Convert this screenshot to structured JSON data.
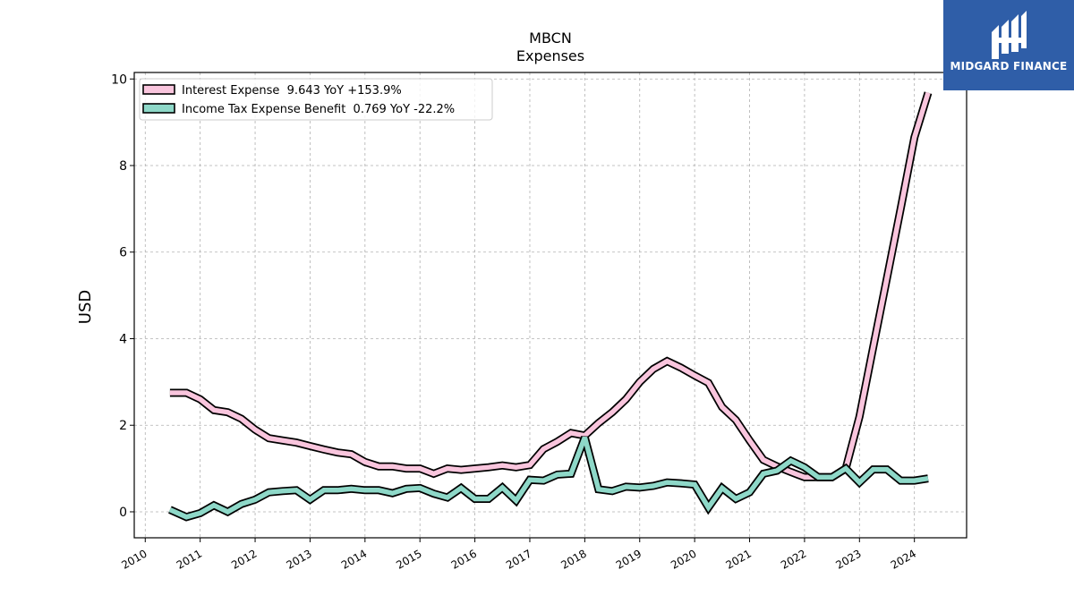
{
  "chart_data": {
    "type": "line",
    "title": "MBCN",
    "subtitle": "Expenses",
    "ylabel": "USD",
    "xlabel": "",
    "ylim": [
      -0.6,
      10.15
    ],
    "xlim": [
      2009.8,
      2024.95
    ],
    "yticks": [
      0,
      2,
      4,
      6,
      8,
      10
    ],
    "xticks": [
      2010,
      2011,
      2012,
      2013,
      2014,
      2015,
      2016,
      2017,
      2018,
      2019,
      2020,
      2021,
      2022,
      2023,
      2024
    ],
    "grid": true,
    "legend_position": "top-left",
    "x": [
      2010.45,
      2010.75,
      2011.0,
      2011.25,
      2011.5,
      2011.75,
      2012.0,
      2012.25,
      2012.5,
      2012.75,
      2013.0,
      2013.25,
      2013.5,
      2013.75,
      2014.0,
      2014.25,
      2014.5,
      2014.75,
      2015.0,
      2015.25,
      2015.5,
      2015.75,
      2016.0,
      2016.25,
      2016.5,
      2016.75,
      2017.0,
      2017.25,
      2017.5,
      2017.75,
      2018.0,
      2018.25,
      2018.5,
      2018.75,
      2019.0,
      2019.25,
      2019.5,
      2019.75,
      2020.0,
      2020.25,
      2020.5,
      2020.75,
      2021.0,
      2021.25,
      2021.5,
      2021.75,
      2022.0,
      2022.25,
      2022.5,
      2022.75,
      2023.0,
      2023.25,
      2023.5,
      2023.75,
      2024.0,
      2024.25
    ],
    "series": [
      {
        "name": "Interest Expense  9.643 YoY +153.9%",
        "color": "#f9c5dd",
        "values": [
          2.75,
          2.75,
          2.6,
          2.35,
          2.3,
          2.15,
          1.9,
          1.7,
          1.65,
          1.6,
          1.52,
          1.44,
          1.37,
          1.33,
          1.15,
          1.05,
          1.05,
          1.0,
          1.0,
          0.88,
          1.0,
          0.97,
          1.0,
          1.03,
          1.07,
          1.03,
          1.08,
          1.45,
          1.62,
          1.82,
          1.76,
          2.05,
          2.3,
          2.6,
          3.0,
          3.3,
          3.48,
          3.33,
          3.15,
          2.98,
          2.42,
          2.12,
          1.65,
          1.2,
          1.05,
          0.92,
          0.8,
          0.8,
          0.8,
          1.0,
          2.2,
          3.8,
          5.4,
          7.0,
          8.65,
          9.68
        ]
      },
      {
        "name": "Income Tax Expense Benefit  0.769 YoY -22.2%",
        "color": "#8ed8c8",
        "values": [
          0.05,
          -0.12,
          -0.03,
          0.15,
          0.0,
          0.18,
          0.28,
          0.45,
          0.48,
          0.5,
          0.28,
          0.5,
          0.5,
          0.53,
          0.5,
          0.5,
          0.43,
          0.53,
          0.55,
          0.42,
          0.33,
          0.55,
          0.3,
          0.3,
          0.56,
          0.26,
          0.74,
          0.72,
          0.86,
          0.88,
          1.72,
          0.52,
          0.48,
          0.58,
          0.56,
          0.6,
          0.68,
          0.66,
          0.63,
          0.1,
          0.55,
          0.3,
          0.45,
          0.88,
          0.95,
          1.18,
          1.03,
          0.8,
          0.8,
          1.0,
          0.68,
          0.98,
          0.98,
          0.72,
          0.72,
          0.77
        ]
      }
    ]
  },
  "logo": {
    "text": "MIDGARD FINANCE"
  }
}
